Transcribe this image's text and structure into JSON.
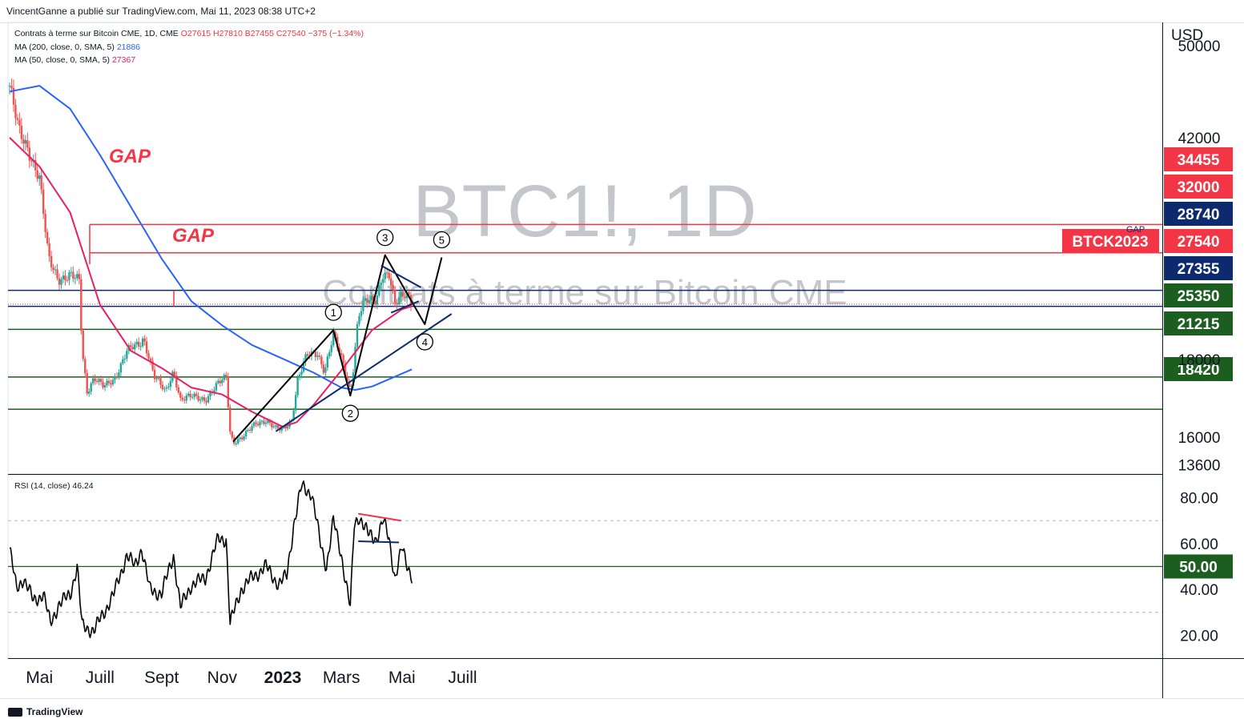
{
  "header": {
    "author_line": "VincentGanne a publié sur TradingView.com, Mai 11, 2023 08:38 UTC+2"
  },
  "legend": {
    "symbol": "Contrats à terme sur Bitcoin CME, 1D, CME",
    "ohlc": "O27615 H27810 B27455 C27540",
    "change": "−375 (−1.34%)",
    "ma200_label": "MA (200, close, 0, SMA, 5)",
    "ma200_value": "21886",
    "ma50_label": "MA (50, close, 0, SMA, 5)",
    "ma50_value": "27367",
    "rsi_label": "RSI (14, close)",
    "rsi_value": "46.24"
  },
  "watermark": {
    "symbol": "BTC1!, 1D",
    "name": "Contrats à terme sur Bitcoin CME"
  },
  "currency": "USD",
  "annotations": {
    "gap1": "GAP",
    "gap2": "GAP",
    "gap_small": "GAP",
    "wave1": "1",
    "wave2": "2",
    "wave3": "3",
    "wave4": "4",
    "wave5": "5"
  },
  "footer": {
    "brand": "TradingView"
  },
  "colors": {
    "red_level": "#f23645",
    "navy_level": "#0d2a6e",
    "green_level": "#1b5e20",
    "ma200": "#2962ff",
    "ma50": "#e91e63",
    "up": "#26a69a",
    "down": "#ef5350"
  },
  "chart_data": [
    {
      "type": "candlestick",
      "x_ticks": [
        "Mai",
        "Juill",
        "Sept",
        "Nov",
        "2023",
        "Mars",
        "Mai",
        "Juill"
      ],
      "y_ticks": [
        13600,
        16000,
        42000,
        50000
      ],
      "y_ticks_partial": [
        "18000"
      ],
      "ylim": [
        12800,
        52000
      ],
      "horizontal_levels": [
        {
          "value": 34455,
          "label": "34455",
          "color": "#f23645"
        },
        {
          "value": 32000,
          "label": "32000",
          "color": "#f23645"
        },
        {
          "value": 28740,
          "label": "28740",
          "color": "#0d2a6e"
        },
        {
          "value": 27355,
          "label": "27355",
          "color": "#0d2a6e"
        },
        {
          "value": 25350,
          "label": "25350",
          "color": "#1b5e20"
        },
        {
          "value": 21215,
          "label": "21215",
          "color": "#1b5e20"
        },
        {
          "value": 18420,
          "label": "18420",
          "color": "#1b5e20"
        }
      ],
      "last_price": {
        "value": 27540,
        "label": "27540",
        "contract": "BTCK2023"
      },
      "price_path": [
        [
          "2022-04-01",
          46500
        ],
        [
          "2022-04-10",
          42500
        ],
        [
          "2022-04-20",
          41000
        ],
        [
          "2022-05-01",
          38500
        ],
        [
          "2022-05-10",
          31500
        ],
        [
          "2022-05-20",
          29800
        ],
        [
          "2022-06-01",
          30000
        ],
        [
          "2022-06-10",
          29500
        ],
        [
          "2022-06-13",
          23500
        ],
        [
          "2022-06-18",
          20000
        ],
        [
          "2022-06-25",
          21200
        ],
        [
          "2022-07-05",
          20300
        ],
        [
          "2022-07-15",
          21000
        ],
        [
          "2022-07-28",
          23500
        ],
        [
          "2022-08-10",
          24000
        ],
        [
          "2022-08-14",
          24600
        ],
        [
          "2022-08-25",
          21300
        ],
        [
          "2022-09-05",
          19800
        ],
        [
          "2022-09-13",
          21800
        ],
        [
          "2022-09-20",
          19300
        ],
        [
          "2022-10-01",
          19500
        ],
        [
          "2022-10-15",
          19300
        ],
        [
          "2022-10-28",
          20600
        ],
        [
          "2022-11-05",
          21200
        ],
        [
          "2022-11-09",
          16500
        ],
        [
          "2022-11-12",
          15600
        ],
        [
          "2022-11-22",
          16000
        ],
        [
          "2022-12-05",
          17200
        ],
        [
          "2022-12-15",
          17500
        ],
        [
          "2022-12-25",
          16700
        ],
        [
          "2023-01-01",
          16600
        ],
        [
          "2023-01-10",
          17500
        ],
        [
          "2023-01-16",
          21000
        ],
        [
          "2023-01-25",
          23000
        ],
        [
          "2023-02-05",
          23300
        ],
        [
          "2023-02-12",
          21800
        ],
        [
          "2023-02-21",
          24800
        ],
        [
          "2023-03-03",
          22300
        ],
        [
          "2023-03-10",
          20000
        ],
        [
          "2023-03-13",
          22000
        ],
        [
          "2023-03-18",
          26500
        ],
        [
          "2023-03-25",
          27700
        ],
        [
          "2023-04-05",
          28000
        ],
        [
          "2023-04-11",
          30200
        ],
        [
          "2023-04-18",
          30000
        ],
        [
          "2023-04-24",
          27400
        ],
        [
          "2023-05-01",
          28400
        ],
        [
          "2023-05-07",
          28600
        ],
        [
          "2023-05-11",
          27540
        ]
      ],
      "ma200_path": [
        [
          "2022-04-01",
          46000
        ],
        [
          "2022-05-01",
          46500
        ],
        [
          "2022-06-01",
          44500
        ],
        [
          "2022-07-01",
          40500
        ],
        [
          "2022-08-01",
          36000
        ],
        [
          "2022-09-01",
          31500
        ],
        [
          "2022-10-01",
          27800
        ],
        [
          "2022-11-01",
          25700
        ],
        [
          "2022-12-01",
          24000
        ],
        [
          "2023-01-01",
          22800
        ],
        [
          "2023-02-01",
          21600
        ],
        [
          "2023-03-01",
          20300
        ],
        [
          "2023-03-15",
          20100
        ],
        [
          "2023-04-01",
          20400
        ],
        [
          "2023-05-11",
          21886
        ]
      ],
      "ma50_path": [
        [
          "2022-04-01",
          42000
        ],
        [
          "2022-05-01",
          39500
        ],
        [
          "2022-06-01",
          35500
        ],
        [
          "2022-07-01",
          27500
        ],
        [
          "2022-08-01",
          23500
        ],
        [
          "2022-09-01",
          22000
        ],
        [
          "2022-10-01",
          20300
        ],
        [
          "2022-11-01",
          19700
        ],
        [
          "2022-12-01",
          18200
        ],
        [
          "2023-01-01",
          16900
        ],
        [
          "2023-01-15",
          17300
        ],
        [
          "2023-02-01",
          18800
        ],
        [
          "2023-03-01",
          21800
        ],
        [
          "2023-04-01",
          25300
        ],
        [
          "2023-05-01",
          27100
        ],
        [
          "2023-05-11",
          27367
        ]
      ],
      "wave_path": [
        [
          "2022-11-12",
          15600
        ],
        [
          "2023-02-21",
          25300
        ],
        [
          "2023-03-10",
          19600
        ],
        [
          "2023-04-14",
          31800
        ],
        [
          "2023-05-24",
          25800
        ],
        [
          "2023-06-10",
          31600
        ]
      ],
      "trendlines": [
        {
          "name": "support",
          "points": [
            [
              "2022-12-25",
              16500
            ],
            [
              "2023-06-20",
              26700
            ]
          ],
          "color": "#0d2a6e"
        },
        {
          "name": "triangle-top",
          "points": [
            [
              "2023-04-10",
              30900
            ],
            [
              "2023-05-20",
              29000
            ]
          ],
          "color": "#0d2a6e"
        },
        {
          "name": "triangle-bottom",
          "points": [
            [
              "2023-04-20",
              26800
            ],
            [
              "2023-05-18",
              27800
            ]
          ],
          "color": "#0d2a6e"
        },
        {
          "name": "impulse",
          "points": [
            [
              "2022-11-12",
              15600
            ],
            [
              "2023-02-21",
              25300
            ]
          ],
          "color": "#000000"
        }
      ]
    },
    {
      "type": "line",
      "title": "RSI (14, close)",
      "y_ticks": [
        20,
        40,
        60,
        80
      ],
      "ylim": [
        10,
        90
      ],
      "levels": [
        70,
        50,
        30
      ],
      "level_label": "50.00",
      "rsi_path": [
        [
          "2022-04-01",
          58
        ],
        [
          "2022-04-08",
          40
        ],
        [
          "2022-04-15",
          45
        ],
        [
          "2022-04-25",
          35
        ],
        [
          "2022-05-05",
          38
        ],
        [
          "2022-05-12",
          25
        ],
        [
          "2022-05-20",
          33
        ],
        [
          "2022-06-01",
          38
        ],
        [
          "2022-06-08",
          50
        ],
        [
          "2022-06-13",
          24
        ],
        [
          "2022-06-25",
          22
        ],
        [
          "2022-07-05",
          30
        ],
        [
          "2022-07-15",
          38
        ],
        [
          "2022-07-28",
          55
        ],
        [
          "2022-08-05",
          50
        ],
        [
          "2022-08-12",
          58
        ],
        [
          "2022-08-20",
          40
        ],
        [
          "2022-09-01",
          38
        ],
        [
          "2022-09-13",
          55
        ],
        [
          "2022-09-20",
          32
        ],
        [
          "2022-10-01",
          42
        ],
        [
          "2022-10-15",
          45
        ],
        [
          "2022-10-28",
          62
        ],
        [
          "2022-11-05",
          62
        ],
        [
          "2022-11-09",
          25
        ],
        [
          "2022-11-20",
          40
        ],
        [
          "2022-12-01",
          45
        ],
        [
          "2022-12-15",
          50
        ],
        [
          "2022-12-28",
          42
        ],
        [
          "2023-01-05",
          46
        ],
        [
          "2023-01-12",
          68
        ],
        [
          "2023-01-20",
          85
        ],
        [
          "2023-01-30",
          82
        ],
        [
          "2023-02-08",
          60
        ],
        [
          "2023-02-14",
          50
        ],
        [
          "2023-02-21",
          70
        ],
        [
          "2023-03-01",
          55
        ],
        [
          "2023-03-10",
          32
        ],
        [
          "2023-03-14",
          68
        ],
        [
          "2023-03-19",
          72
        ],
        [
          "2023-03-28",
          64
        ],
        [
          "2023-04-05",
          62
        ],
        [
          "2023-04-12",
          70
        ],
        [
          "2023-04-18",
          62
        ],
        [
          "2023-04-24",
          45
        ],
        [
          "2023-05-01",
          58
        ],
        [
          "2023-05-05",
          52
        ],
        [
          "2023-05-11",
          46
        ]
      ]
    }
  ]
}
